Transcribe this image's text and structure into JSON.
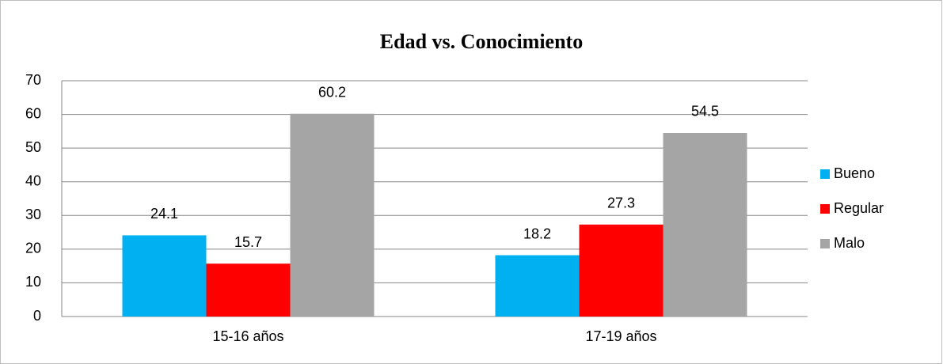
{
  "chart_data": {
    "type": "bar",
    "title": "Edad vs. Conocimiento",
    "categories": [
      "15-16 años",
      "17-19 años"
    ],
    "series": [
      {
        "name": "Bueno",
        "color": "#00b0f0",
        "values": [
          24.1,
          18.2
        ]
      },
      {
        "name": "Regular",
        "color": "#ff0000",
        "values": [
          15.7,
          27.3
        ]
      },
      {
        "name": "Malo",
        "color": "#a5a5a5",
        "values": [
          60.2,
          54.5
        ]
      }
    ],
    "ylim": [
      0,
      70
    ],
    "yticks": [
      0,
      10,
      20,
      30,
      40,
      50,
      60,
      70
    ],
    "grid": true,
    "legend": "right"
  }
}
